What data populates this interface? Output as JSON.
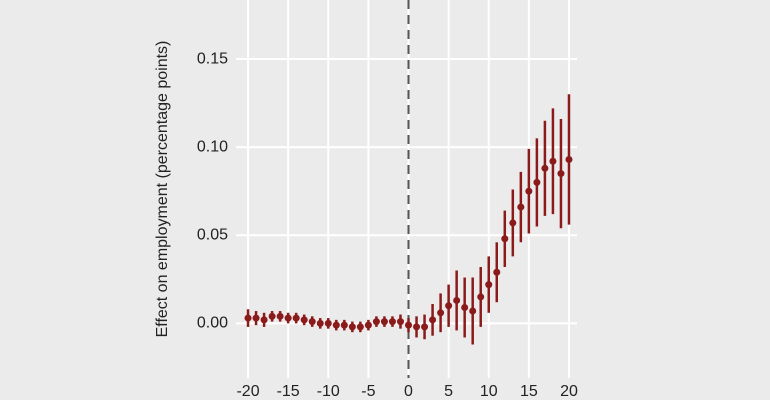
{
  "chart_data": {
    "type": "errorbar",
    "y_label": "Effect on employment (percentage points)",
    "x": [
      -20,
      -19,
      -18,
      -17,
      -16,
      -15,
      -14,
      -13,
      -12,
      -11,
      -10,
      -9,
      -8,
      -7,
      -6,
      -5,
      -4,
      -3,
      -2,
      -1,
      0,
      1,
      2,
      3,
      4,
      5,
      6,
      7,
      8,
      9,
      10,
      11,
      12,
      13,
      14,
      15,
      16,
      17,
      18,
      19,
      20
    ],
    "series": [
      {
        "color": "#8b1a1a",
        "values": [
          0.003,
          0.003,
          0.002,
          0.004,
          0.004,
          0.003,
          0.003,
          0.002,
          0.001,
          0.0,
          0.0,
          -0.001,
          -0.001,
          -0.002,
          -0.002,
          -0.001,
          0.001,
          0.001,
          0.001,
          0.001,
          -0.001,
          -0.002,
          -0.002,
          0.002,
          0.006,
          0.01,
          0.013,
          0.009,
          0.007,
          0.015,
          0.022,
          0.029,
          0.048,
          0.057,
          0.066,
          0.075,
          0.08,
          0.088,
          0.092,
          0.085,
          0.093
        ],
        "errors": [
          0.005,
          0.004,
          0.004,
          0.003,
          0.003,
          0.003,
          0.003,
          0.003,
          0.003,
          0.003,
          0.003,
          0.003,
          0.003,
          0.003,
          0.003,
          0.003,
          0.003,
          0.003,
          0.003,
          0.004,
          0.004,
          0.006,
          0.007,
          0.009,
          0.011,
          0.012,
          0.017,
          0.017,
          0.019,
          0.017,
          0.016,
          0.017,
          0.016,
          0.019,
          0.02,
          0.024,
          0.025,
          0.027,
          0.03,
          0.031,
          0.037
        ]
      }
    ],
    "xlim": [
      -21.5,
      21
    ],
    "ylim": [
      -0.031,
      0.1835
    ],
    "xticks": [
      -20,
      -15,
      -10,
      -5,
      0,
      5,
      10,
      15,
      20
    ],
    "yticks": [
      {
        "value": 0,
        "label": "0.00"
      },
      {
        "value": 0.05,
        "label": "0.05"
      },
      {
        "value": 0.1,
        "label": "0.10"
      },
      {
        "value": 0.15,
        "label": "0.15"
      }
    ],
    "vline": 0,
    "grid": true
  }
}
